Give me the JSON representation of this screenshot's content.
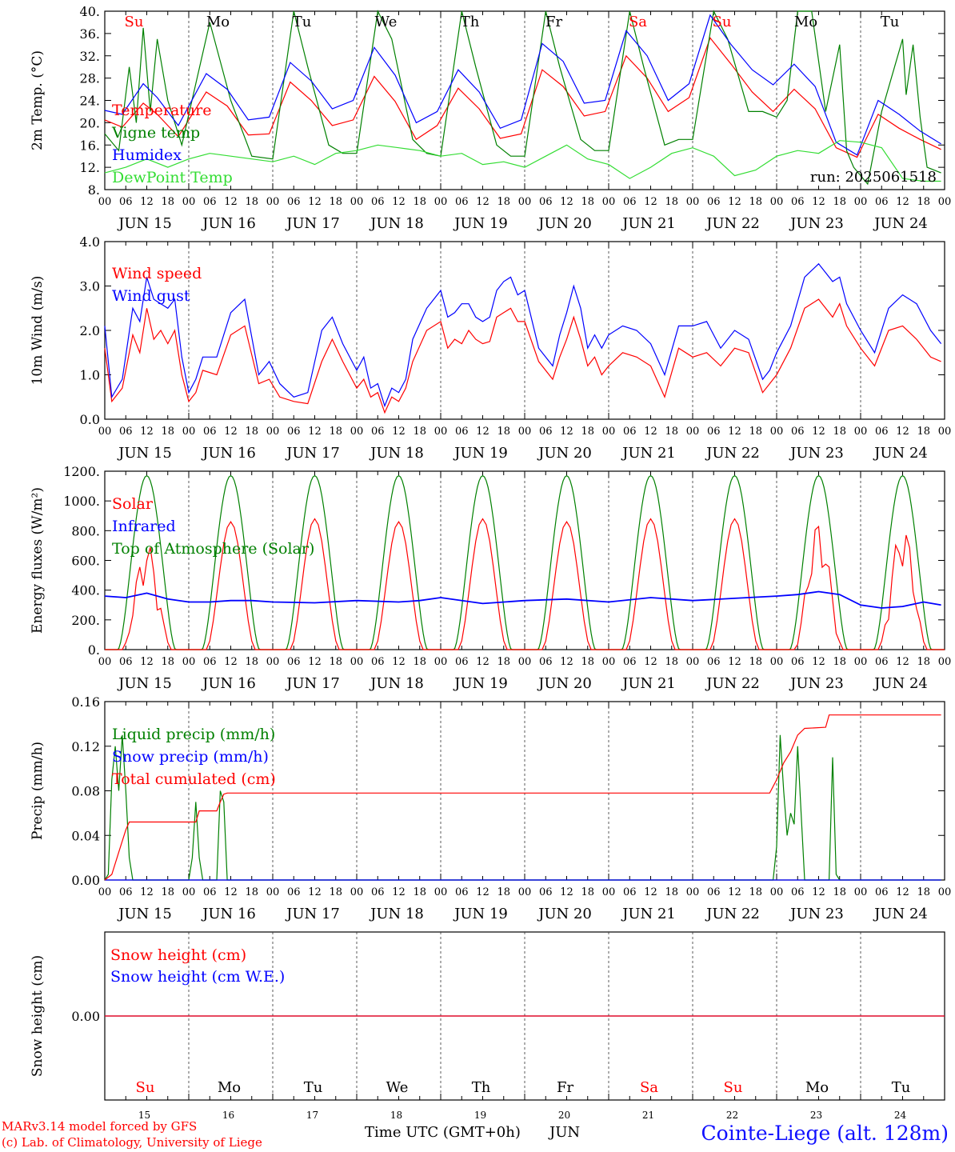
{
  "footer": {
    "credit_line1": "MARv3.14 model forced by GFS",
    "credit_line2": "(c) Lab. of Climatology, University of Liege",
    "xaxis_title": "Time UTC (GMT+0h)",
    "month": "JUN",
    "station": "Cointe-Liege (alt. 128m)"
  },
  "colors": {
    "red": "#ff0000",
    "blue": "#0000ff",
    "green": "#008000",
    "lightgreen": "#33dd33",
    "frame": "#000000"
  },
  "chart_data": [
    {
      "type": "line",
      "ylabel": "2m Temp. (°C)",
      "ylim": [
        8,
        40
      ],
      "yticks": [
        "8.",
        "12.",
        "16.",
        "20.",
        "24.",
        "28.",
        "32.",
        "36.",
        "40."
      ],
      "run_label": "run: 2025061518",
      "days": [
        "Su",
        "Mo",
        "Tu",
        "We",
        "Th",
        "Fr",
        "Sa",
        "Su",
        "Mo",
        "Tu"
      ],
      "day_colors": [
        "#ff0000",
        "#000000",
        "#000000",
        "#000000",
        "#000000",
        "#000000",
        "#ff0000",
        "#ff0000",
        "#000000",
        "#000000"
      ],
      "hour_ticks": [
        "00",
        "06",
        "12",
        "18"
      ],
      "dates": [
        "JUN 15",
        "JUN 16",
        "JUN 17",
        "JUN 18",
        "JUN 19",
        "JUN 20",
        "JUN 21",
        "JUN 22",
        "JUN 23",
        "JUN 24"
      ],
      "series": [
        {
          "name": "Temperature",
          "color": "#ff0000",
          "x": [
            0,
            5,
            11,
            15,
            21,
            29,
            35,
            41,
            47,
            53,
            59,
            65,
            71,
            77,
            83,
            89,
            95,
            101,
            107,
            113,
            119,
            125,
            131,
            137,
            143,
            149,
            155,
            161,
            167,
            173,
            179,
            185,
            191,
            197,
            203,
            209,
            215,
            221,
            227,
            233,
            239
          ],
          "values": [
            20.5,
            19.2,
            23.5,
            21.5,
            17.5,
            25.5,
            23.0,
            17.8,
            18.0,
            27.3,
            24.0,
            19.5,
            20.5,
            28.3,
            23.8,
            17.0,
            19.5,
            26.2,
            22.5,
            17.2,
            18.0,
            29.5,
            26.5,
            21.2,
            22.0,
            32.0,
            28.0,
            22.0,
            24.5,
            35.2,
            30.5,
            25.5,
            22.0,
            26.0,
            22.5,
            15.5,
            13.8,
            21.5,
            19.0,
            17.0,
            15.2
          ]
        },
        {
          "name": "Vigne temp",
          "color": "#008000",
          "x": [
            0,
            4,
            7,
            9,
            11,
            13,
            15,
            18,
            22,
            30,
            36,
            42,
            48,
            54,
            58,
            64,
            68,
            72,
            78,
            82,
            88,
            92,
            96,
            102,
            106,
            112,
            116,
            120,
            126,
            130,
            136,
            140,
            144,
            150,
            154,
            160,
            164,
            168,
            174,
            178,
            184,
            188,
            192,
            195,
            198,
            202,
            206,
            210,
            212,
            214,
            218,
            222,
            228,
            229,
            231,
            233,
            235,
            239
          ],
          "values": [
            18,
            15,
            30,
            20,
            37,
            22,
            35,
            24,
            16,
            38,
            24,
            14,
            13.5,
            40,
            30,
            16,
            14.5,
            14.5,
            40,
            35,
            17,
            14.5,
            14,
            40,
            30,
            16,
            14,
            14,
            40,
            30,
            17,
            15,
            15,
            40,
            30,
            16,
            17,
            17,
            40,
            35,
            22,
            22,
            21,
            24,
            40,
            40,
            22,
            34,
            15,
            12,
            9,
            22,
            35,
            25,
            34,
            21,
            12,
            11
          ]
        },
        {
          "name": "Humidex",
          "color": "#0000ff",
          "x": [
            0,
            5,
            11,
            15,
            21,
            29,
            35,
            41,
            47,
            53,
            59,
            65,
            71,
            77,
            83,
            89,
            95,
            101,
            107,
            113,
            119,
            125,
            131,
            137,
            143,
            149,
            155,
            161,
            167,
            173,
            179,
            185,
            191,
            197,
            203,
            209,
            215,
            221,
            227,
            233,
            239
          ],
          "values": [
            22.2,
            21.5,
            27.0,
            24.5,
            19.5,
            28.8,
            26.0,
            20.5,
            21.0,
            30.8,
            27.5,
            22.5,
            24.0,
            33.5,
            28.5,
            20.0,
            22.0,
            29.5,
            25.5,
            19.0,
            20.5,
            34.2,
            31.0,
            23.5,
            24.0,
            36.5,
            32.0,
            24.0,
            27.0,
            39.3,
            34.0,
            29.5,
            26.8,
            30.5,
            26.5,
            16.5,
            14.2,
            24.0,
            21.5,
            18.5,
            16.2
          ]
        },
        {
          "name": "DewPoint Temp",
          "color": "#33dd33",
          "x": [
            0,
            6,
            12,
            18,
            24,
            30,
            36,
            42,
            48,
            54,
            60,
            66,
            72,
            78,
            84,
            90,
            96,
            102,
            108,
            114,
            120,
            126,
            132,
            138,
            144,
            150,
            156,
            162,
            168,
            174,
            180,
            186,
            192,
            198,
            204,
            210,
            216,
            222,
            228,
            234,
            239
          ],
          "values": [
            11,
            12,
            13.5,
            12,
            13.5,
            14.5,
            14,
            13.5,
            13,
            14,
            12.5,
            14.5,
            15,
            16,
            15.5,
            15,
            14,
            14.5,
            12.5,
            13,
            12,
            14,
            16,
            13.5,
            12.5,
            10,
            12,
            14.5,
            15.5,
            14,
            10.5,
            11.5,
            14,
            15,
            14.5,
            16.8,
            16.5,
            15.5,
            10,
            9.5,
            9.5
          ]
        }
      ]
    },
    {
      "type": "line",
      "ylabel": "10m Wind (m/s)",
      "ylim": [
        0,
        4
      ],
      "yticks": [
        "0.0",
        "1.0",
        "2.0",
        "3.0",
        "4.0"
      ],
      "series": [
        {
          "name": "Wind speed",
          "color": "#ff0000",
          "x": [
            0,
            2,
            5,
            8,
            10,
            12,
            14,
            16,
            18,
            20,
            22,
            24,
            26,
            28,
            32,
            36,
            40,
            44,
            47,
            50,
            54,
            58,
            62,
            65,
            68,
            72,
            74,
            76,
            78,
            80,
            82,
            84,
            86,
            88,
            92,
            96,
            98,
            100,
            102,
            104,
            106,
            108,
            110,
            112,
            114,
            116,
            118,
            120,
            124,
            128,
            130,
            132,
            134,
            136,
            138,
            140,
            142,
            144,
            148,
            152,
            156,
            160,
            164,
            168,
            172,
            176,
            180,
            184,
            188,
            190,
            192,
            196,
            200,
            204,
            206,
            208,
            210,
            212,
            216,
            220,
            224,
            228,
            232,
            236,
            239
          ],
          "values": [
            1.6,
            0.4,
            0.7,
            1.9,
            1.5,
            2.5,
            1.8,
            2.0,
            1.7,
            2.0,
            1.0,
            0.4,
            0.6,
            1.1,
            1.0,
            1.9,
            2.1,
            0.8,
            0.9,
            0.5,
            0.4,
            0.35,
            1.3,
            1.8,
            1.3,
            0.7,
            0.9,
            0.5,
            0.6,
            0.15,
            0.5,
            0.4,
            0.7,
            1.3,
            2.0,
            2.2,
            1.6,
            1.8,
            1.7,
            2.0,
            1.8,
            1.7,
            1.75,
            2.3,
            2.4,
            2.5,
            2.2,
            2.2,
            1.3,
            0.9,
            1.4,
            1.8,
            2.3,
            1.8,
            1.2,
            1.4,
            1.0,
            1.2,
            1.5,
            1.4,
            1.2,
            0.5,
            1.6,
            1.4,
            1.5,
            1.2,
            1.6,
            1.5,
            0.6,
            0.8,
            1.0,
            1.6,
            2.5,
            2.7,
            2.5,
            2.3,
            2.6,
            2.1,
            1.6,
            1.2,
            2.0,
            2.1,
            1.8,
            1.4,
            1.3
          ]
        },
        {
          "name": "Wind gust",
          "color": "#0000ff",
          "x": [
            0,
            2,
            5,
            8,
            10,
            12,
            14,
            16,
            18,
            20,
            22,
            24,
            26,
            28,
            32,
            36,
            40,
            44,
            47,
            50,
            54,
            58,
            62,
            65,
            68,
            72,
            74,
            76,
            78,
            80,
            82,
            84,
            86,
            88,
            92,
            96,
            98,
            100,
            102,
            104,
            106,
            108,
            110,
            112,
            114,
            116,
            118,
            120,
            124,
            128,
            130,
            132,
            134,
            136,
            138,
            140,
            142,
            144,
            148,
            152,
            156,
            160,
            164,
            168,
            172,
            176,
            180,
            184,
            188,
            190,
            192,
            196,
            200,
            204,
            206,
            208,
            210,
            212,
            216,
            220,
            224,
            228,
            232,
            236,
            239
          ],
          "values": [
            2.1,
            0.5,
            0.9,
            2.5,
            2.2,
            3.2,
            2.7,
            2.6,
            2.5,
            2.7,
            1.4,
            0.6,
            0.9,
            1.4,
            1.4,
            2.4,
            2.7,
            1.0,
            1.3,
            0.8,
            0.5,
            0.6,
            2.0,
            2.3,
            1.7,
            1.1,
            1.4,
            0.7,
            0.8,
            0.3,
            0.7,
            0.6,
            0.9,
            1.8,
            2.5,
            2.9,
            2.3,
            2.4,
            2.6,
            2.6,
            2.3,
            2.2,
            2.3,
            2.9,
            3.1,
            3.2,
            2.8,
            2.9,
            1.6,
            1.2,
            1.9,
            2.4,
            3.0,
            2.5,
            1.6,
            1.9,
            1.6,
            1.9,
            2.1,
            2.0,
            1.7,
            1.0,
            2.1,
            2.1,
            2.2,
            1.6,
            2.0,
            1.8,
            0.9,
            1.1,
            1.5,
            2.1,
            3.2,
            3.5,
            3.3,
            3.1,
            3.2,
            2.6,
            2.0,
            1.5,
            2.5,
            2.8,
            2.6,
            2.0,
            1.7
          ]
        }
      ]
    },
    {
      "type": "line",
      "ylabel": "Energy fluxes (W/m²)",
      "ylim": [
        0,
        1200
      ],
      "yticks": [
        "0.",
        "200.",
        "400.",
        "600.",
        "800.",
        "1000.",
        "1200."
      ],
      "series": [
        {
          "name": "Solar",
          "color": "#ff0000",
          "day_peaks": [
            720,
            860,
            880,
            860,
            880,
            860,
            880,
            880,
            870,
            850
          ],
          "noisy_days": [
            0,
            8,
            9
          ]
        },
        {
          "name": "Infrared",
          "color": "#0000ff",
          "x": [
            0,
            6,
            12,
            18,
            24,
            30,
            36,
            42,
            48,
            60,
            72,
            84,
            90,
            96,
            108,
            120,
            132,
            144,
            156,
            168,
            180,
            192,
            198,
            204,
            210,
            216,
            222,
            228,
            234,
            239
          ],
          "values": [
            360,
            350,
            380,
            340,
            320,
            320,
            330,
            330,
            320,
            315,
            330,
            320,
            330,
            350,
            310,
            330,
            340,
            320,
            350,
            330,
            345,
            360,
            370,
            390,
            370,
            300,
            280,
            290,
            320,
            300
          ]
        },
        {
          "name": "Top of Atmosphere (Solar)",
          "color": "#008000",
          "peak": 1170
        }
      ]
    },
    {
      "type": "line",
      "ylabel": "Precip (mm/h)",
      "ylim": [
        0,
        0.16
      ],
      "yticks": [
        "0.00",
        "0.04",
        "0.08",
        "0.12",
        "0.16"
      ],
      "series": [
        {
          "name": "Liquid precip (mm/h)",
          "color": "#008000",
          "x": [
            0,
            1,
            2,
            3,
            4,
            5,
            6,
            7,
            8,
            24,
            25,
            26,
            27,
            28,
            32,
            33,
            34,
            35,
            36,
            37,
            191,
            192,
            193,
            194,
            195,
            196,
            197,
            198,
            199,
            200,
            207,
            208,
            209,
            210,
            239
          ],
          "values": [
            0,
            0.005,
            0.09,
            0.12,
            0.08,
            0.13,
            0.08,
            0.02,
            0,
            0,
            0.02,
            0.07,
            0.02,
            0,
            0,
            0.08,
            0.07,
            0,
            0,
            0,
            0,
            0.03,
            0.13,
            0.08,
            0.04,
            0.06,
            0.05,
            0.12,
            0.06,
            0,
            0,
            0.11,
            0.005,
            0,
            0
          ]
        },
        {
          "name": "Snow precip (mm/h)",
          "color": "#0000ff",
          "x": [
            0,
            239
          ],
          "values": [
            0,
            0
          ]
        },
        {
          "name": "Total cumulated (cm)",
          "color": "#ff0000",
          "x": [
            0,
            2,
            4,
            6,
            7,
            26,
            27,
            32,
            33,
            34,
            35,
            190,
            192,
            194,
            196,
            198,
            200,
            206,
            207,
            239
          ],
          "values": [
            0,
            0.005,
            0.025,
            0.045,
            0.052,
            0.052,
            0.062,
            0.062,
            0.07,
            0.077,
            0.078,
            0.078,
            0.09,
            0.105,
            0.115,
            0.13,
            0.136,
            0.137,
            0.148,
            0.148
          ]
        }
      ]
    },
    {
      "type": "line",
      "ylabel": "Snow height (cm)",
      "yticks": [
        "0.00"
      ],
      "days": [
        "Su",
        "Mo",
        "Tu",
        "We",
        "Th",
        "Fr",
        "Sa",
        "Su",
        "Mo",
        "Tu"
      ],
      "day_numbers": [
        "15",
        "16",
        "17",
        "18",
        "19",
        "20",
        "21",
        "22",
        "23",
        "24"
      ],
      "series": [
        {
          "name": "Snow height (cm)",
          "color": "#ff0000",
          "x": [
            0,
            239
          ],
          "values": [
            0,
            0
          ]
        },
        {
          "name": "Snow height (cm W.E.)",
          "color": "#0000ff",
          "x": [
            0,
            239
          ],
          "values": [
            0,
            0
          ]
        }
      ]
    }
  ]
}
